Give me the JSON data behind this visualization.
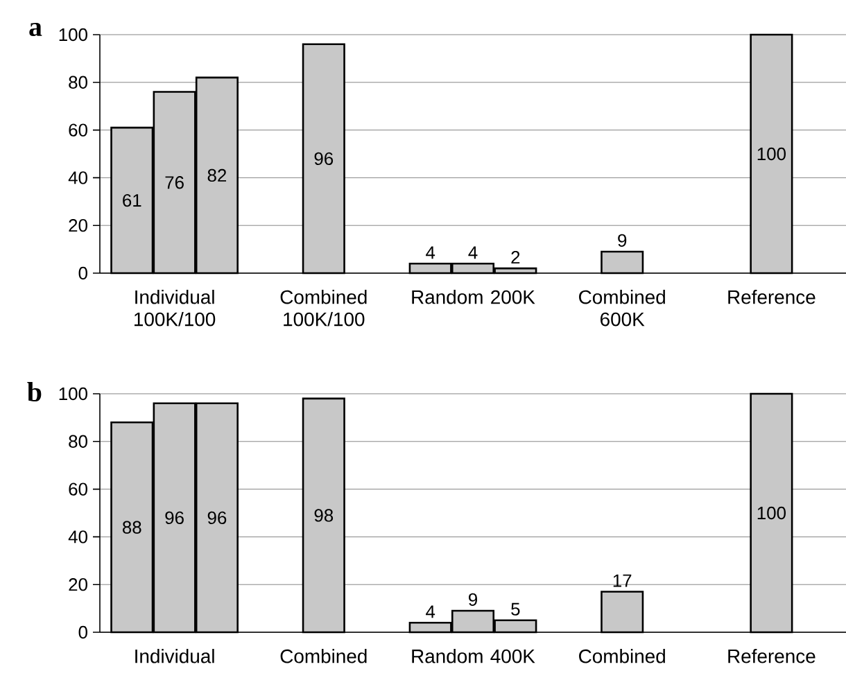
{
  "chart_data": [
    {
      "type": "bar",
      "title": "a",
      "categories": [
        "Individual 100K/100",
        "Combined 100K/100",
        "Random 200K",
        "Combined 600K",
        "Reference"
      ],
      "series": [
        {
          "color": "#c8c8c8",
          "values": [
            61,
            96,
            4,
            9,
            100
          ]
        },
        {
          "color": "#c8c8c8",
          "values": [
            76,
            null,
            4,
            null,
            null
          ]
        },
        {
          "color": "#c8c8c8",
          "values": [
            82,
            null,
            2,
            null,
            null
          ]
        }
      ],
      "ylim": [
        0,
        100
      ],
      "yticks": [
        0,
        20,
        40,
        60,
        80,
        100
      ],
      "grid": "y",
      "data_labels": true
    },
    {
      "type": "bar",
      "title": "b",
      "categories": [
        "Individual",
        "Combined",
        "Random 400K",
        "Combined",
        "Reference"
      ],
      "series": [
        {
          "color": "#c8c8c8",
          "values": [
            88,
            98,
            4,
            17,
            100
          ]
        },
        {
          "color": "#c8c8c8",
          "values": [
            96,
            null,
            9,
            null,
            null
          ]
        },
        {
          "color": "#c8c8c8",
          "values": [
            96,
            null,
            5,
            null,
            null
          ]
        }
      ],
      "ylim": [
        0,
        100
      ],
      "yticks": [
        0,
        20,
        40,
        60,
        80,
        100
      ],
      "grid": "y",
      "data_labels": true
    }
  ]
}
